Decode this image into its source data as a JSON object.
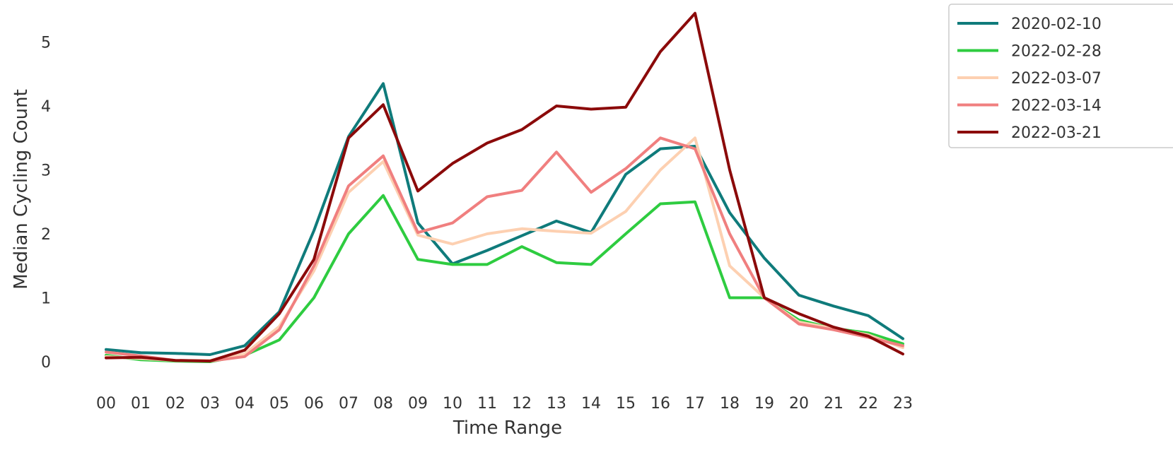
{
  "chart_data": {
    "type": "line",
    "title": "",
    "xlabel": "Time Range",
    "ylabel": "Median Cycling Count",
    "categories": [
      "00",
      "01",
      "02",
      "03",
      "04",
      "05",
      "06",
      "07",
      "08",
      "09",
      "10",
      "11",
      "12",
      "13",
      "14",
      "15",
      "16",
      "17",
      "18",
      "19",
      "20",
      "21",
      "22",
      "23"
    ],
    "y_ticks": [
      "0",
      "1",
      "2",
      "3",
      "4",
      "5"
    ],
    "ylim": [
      -0.3,
      5.5
    ],
    "grid": false,
    "legend_position": "upper right, outside plot",
    "series": [
      {
        "name": "2020-02-10",
        "color": "#0f7b7b",
        "values": [
          0.19,
          0.14,
          0.13,
          0.11,
          0.25,
          0.78,
          2.05,
          3.52,
          4.35,
          2.17,
          1.53,
          1.74,
          1.97,
          2.2,
          2.02,
          2.93,
          3.33,
          3.37,
          2.33,
          1.62,
          1.04,
          0.87,
          0.72,
          0.36
        ]
      },
      {
        "name": "2022-02-28",
        "color": "#2ecc40",
        "values": [
          0.1,
          0.03,
          0.01,
          0.0,
          0.1,
          0.34,
          1.0,
          2.0,
          2.6,
          1.6,
          1.52,
          1.52,
          1.8,
          1.55,
          1.52,
          2.0,
          2.47,
          2.5,
          1.0,
          1.0,
          0.65,
          0.52,
          0.45,
          0.28
        ]
      },
      {
        "name": "2022-03-07",
        "color": "#fdd0b1",
        "values": [
          0.08,
          0.05,
          0.02,
          0.02,
          0.12,
          0.55,
          1.42,
          2.65,
          3.13,
          1.98,
          1.84,
          2.0,
          2.08,
          2.04,
          2.01,
          2.35,
          3.0,
          3.5,
          1.5,
          1.0,
          0.62,
          0.52,
          0.42,
          0.22
        ]
      },
      {
        "name": "2022-03-14",
        "color": "#f07f7f",
        "values": [
          0.15,
          0.09,
          0.02,
          0.01,
          0.08,
          0.5,
          1.5,
          2.75,
          3.22,
          2.02,
          2.17,
          2.58,
          2.68,
          3.28,
          2.65,
          3.02,
          3.5,
          3.33,
          2.0,
          1.0,
          0.59,
          0.5,
          0.38,
          0.25
        ]
      },
      {
        "name": "2022-03-21",
        "color": "#8b0a0a",
        "values": [
          0.06,
          0.07,
          0.02,
          0.01,
          0.18,
          0.75,
          1.6,
          3.5,
          4.02,
          2.67,
          3.1,
          3.42,
          3.63,
          4.0,
          3.95,
          3.98,
          4.85,
          5.45,
          3.0,
          1.0,
          0.75,
          0.54,
          0.4,
          0.12
        ]
      }
    ]
  }
}
